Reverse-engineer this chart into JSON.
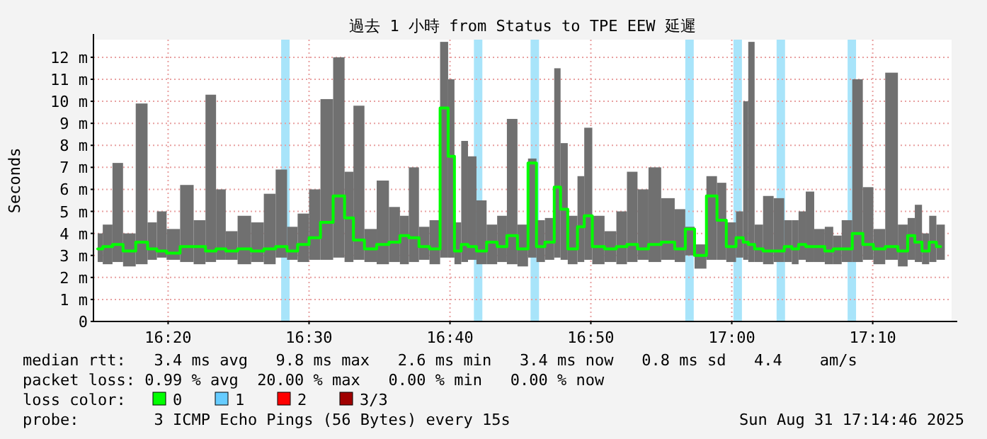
{
  "chart_data": {
    "type": "step",
    "title": "過去 1 小時 from Status to TPE EEW 延遲",
    "ylabel": "Seconds",
    "legend_title": "loss color:",
    "legend": "bottom",
    "grid": true,
    "xlim": [
      16.245,
      17.26
    ],
    "ylim": [
      0,
      12.8
    ],
    "xticks": [
      {
        "value": 16.3333,
        "label": "16:20"
      },
      {
        "value": 16.5,
        "label": "16:30"
      },
      {
        "value": 16.6667,
        "label": "16:40"
      },
      {
        "value": 16.8333,
        "label": "16:50"
      },
      {
        "value": 17.0,
        "label": "17:00"
      },
      {
        "value": 17.1667,
        "label": "17:10"
      }
    ],
    "yticks": [
      0,
      {
        "value": 1,
        "label": "1 m"
      },
      {
        "value": 2,
        "label": "2 m"
      },
      {
        "value": 3,
        "label": "3 m"
      },
      {
        "value": 4,
        "label": "4 m"
      },
      {
        "value": 5,
        "label": "5 m"
      },
      {
        "value": 6,
        "label": "6 m"
      },
      {
        "value": 7,
        "label": "7 m"
      },
      {
        "value": 8,
        "label": "8 m"
      },
      {
        "value": 9,
        "label": "9 m"
      },
      {
        "value": 10,
        "label": "10 m"
      },
      {
        "value": 11,
        "label": "11 m"
      },
      {
        "value": 12,
        "label": "12 m"
      }
    ],
    "series": [
      {
        "name": "0",
        "color": "#00ff00",
        "x": [
          16.25,
          16.262,
          16.273,
          16.287,
          16.303,
          16.315,
          16.325,
          16.338,
          16.357,
          16.37,
          16.385,
          16.395,
          16.408,
          16.423,
          16.44,
          16.453,
          16.468,
          16.48,
          16.493,
          16.507,
          16.52,
          16.537,
          16.547,
          16.558,
          16.573,
          16.587,
          16.602,
          16.613,
          16.623,
          16.637,
          16.648,
          16.662,
          16.667,
          16.677,
          16.683,
          16.693,
          16.703,
          16.717,
          16.728,
          16.74,
          16.753,
          16.765,
          16.773,
          16.785,
          16.795,
          16.8,
          16.812,
          16.823,
          16.828,
          16.842,
          16.857,
          16.87,
          16.882,
          16.895,
          16.908,
          16.925,
          16.94,
          16.95,
          16.962,
          16.978,
          16.987,
          17.0,
          17.01,
          17.017,
          17.022,
          17.032,
          17.042,
          17.057,
          17.067,
          17.075,
          17.083,
          17.092,
          17.103,
          17.117,
          17.123,
          17.137,
          17.148,
          17.162,
          17.173,
          17.19,
          17.203,
          17.213,
          17.22,
          17.23,
          17.237,
          17.247
        ],
        "values": [
          3.3,
          3.4,
          3.5,
          3.2,
          3.6,
          3.3,
          3.2,
          3.1,
          3.4,
          3.4,
          3.2,
          3.3,
          3.2,
          3.3,
          3.2,
          3.3,
          3.4,
          3.2,
          3.5,
          3.8,
          4.5,
          5.7,
          4.7,
          3.7,
          3.3,
          3.5,
          3.6,
          3.9,
          3.8,
          3.4,
          3.3,
          9.7,
          7.5,
          3.2,
          3.5,
          3.4,
          3.2,
          3.6,
          3.4,
          3.9,
          3.3,
          7.2,
          3.4,
          3.6,
          6.1,
          5.1,
          3.3,
          4.3,
          4.8,
          3.4,
          3.3,
          3.4,
          3.5,
          3.3,
          3.5,
          3.6,
          3.3,
          4.2,
          3.0,
          5.7,
          4.6,
          3.4,
          3.8,
          3.6,
          3.5,
          3.3,
          3.2,
          3.2,
          3.4,
          3.3,
          3.5,
          3.4,
          3.4,
          3.2,
          3.3,
          3.3,
          4.0,
          3.5,
          3.3,
          3.4,
          3.2,
          3.9,
          3.6,
          3.2,
          3.6,
          3.4
        ],
        "lower": [
          2.7,
          2.6,
          2.7,
          2.5,
          2.6,
          2.8,
          2.9,
          2.8,
          2.7,
          2.6,
          2.7,
          2.8,
          2.8,
          2.6,
          2.7,
          2.6,
          2.9,
          2.8,
          2.7,
          2.8,
          2.8,
          2.9,
          2.7,
          2.8,
          2.7,
          2.6,
          2.7,
          2.6,
          2.7,
          2.8,
          2.6,
          2.9,
          2.9,
          2.6,
          2.7,
          2.8,
          2.6,
          2.6,
          2.7,
          2.6,
          2.5,
          2.9,
          2.7,
          2.8,
          2.9,
          2.8,
          2.6,
          2.7,
          2.8,
          2.6,
          2.7,
          2.6,
          2.7,
          2.8,
          2.7,
          2.8,
          2.7,
          3.0,
          2.4,
          2.8,
          2.8,
          2.7,
          2.9,
          2.8,
          2.7,
          2.7,
          2.6,
          2.7,
          2.7,
          2.6,
          2.8,
          2.7,
          2.7,
          2.6,
          2.6,
          2.7,
          2.7,
          2.8,
          2.6,
          2.8,
          2.5,
          2.8,
          2.7,
          2.6,
          2.7,
          2.8
        ],
        "upper": [
          4.0,
          4.4,
          7.2,
          4.0,
          9.9,
          4.5,
          5.0,
          4.2,
          6.2,
          4.6,
          10.3,
          6.0,
          4.1,
          4.8,
          4.5,
          5.8,
          6.9,
          4.3,
          4.9,
          6.0,
          10.1,
          12.0,
          6.8,
          9.8,
          4.2,
          6.4,
          5.2,
          4.8,
          7.0,
          4.3,
          4.6,
          12.7,
          11.0,
          4.5,
          8.2,
          7.5,
          5.5,
          4.4,
          4.8,
          9.2,
          4.4,
          7.4,
          4.6,
          4.7,
          11.5,
          8.1,
          4.8,
          6.6,
          8.8,
          4.8,
          4.1,
          5.0,
          6.8,
          6.0,
          7.0,
          5.6,
          5.1,
          4.3,
          3.5,
          6.6,
          6.3,
          4.5,
          5.0,
          10.0,
          12.7,
          4.4,
          5.7,
          5.6,
          4.6,
          4.6,
          5.0,
          5.9,
          4.2,
          4.3,
          3.9,
          4.6,
          11.0,
          6.1,
          4.2,
          11.3,
          4.4,
          4.7,
          5.3,
          4.0,
          4.8,
          4.4
        ]
      },
      {
        "name": "1",
        "color": "#66ccff"
      },
      {
        "name": "2",
        "color": "#ff0000"
      },
      {
        "name": "3/3",
        "color": "#a00000"
      }
    ],
    "bands": [
      {
        "axis": "x",
        "from": 16.467,
        "to": 16.477,
        "color": "#a8e4fa"
      },
      {
        "axis": "x",
        "from": 16.695,
        "to": 16.705,
        "color": "#a8e4fa"
      },
      {
        "axis": "x",
        "from": 16.762,
        "to": 16.772,
        "color": "#a8e4fa"
      },
      {
        "axis": "x",
        "from": 16.945,
        "to": 16.955,
        "color": "#a8e4fa"
      },
      {
        "axis": "x",
        "from": 17.002,
        "to": 17.012,
        "color": "#a8e4fa"
      },
      {
        "axis": "x",
        "from": 17.053,
        "to": 17.063,
        "color": "#a8e4fa"
      },
      {
        "axis": "x",
        "from": 17.137,
        "to": 17.147,
        "color": "#a8e4fa"
      }
    ],
    "annotations": [
      "median rtt:   3.4 ms avg   9.8 ms max   2.6 ms min   3.4 ms now   0.8 ms sd   4.4    am/s",
      "packet loss: 0.99 % avg  20.00 % max   0.00 % min   0.00 % now",
      "probe:        3 ICMP Echo Pings (56 Bytes) every 15s",
      "Sun Aug 31 17:14:46 2025"
    ]
  }
}
